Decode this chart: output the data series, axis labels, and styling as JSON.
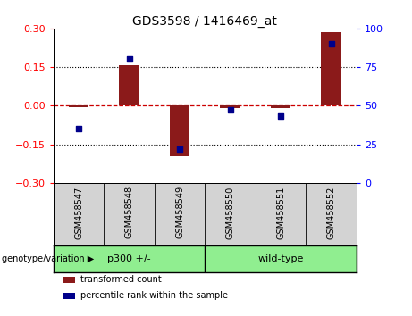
{
  "title": "GDS3598 / 1416469_at",
  "samples": [
    "GSM458547",
    "GSM458548",
    "GSM458549",
    "GSM458550",
    "GSM458551",
    "GSM458552"
  ],
  "transformed_counts": [
    -0.005,
    0.158,
    -0.195,
    -0.008,
    -0.01,
    0.285
  ],
  "percentile_ranks": [
    35,
    80,
    22,
    47,
    43,
    90
  ],
  "ylim_left": [
    -0.3,
    0.3
  ],
  "ylim_right": [
    0,
    100
  ],
  "yticks_left": [
    -0.3,
    -0.15,
    0,
    0.15,
    0.3
  ],
  "yticks_right": [
    0,
    25,
    50,
    75,
    100
  ],
  "bar_color": "#8b1a1a",
  "scatter_color": "#00008b",
  "hline_color": "#cc0000",
  "sample_bg": "#d3d3d3",
  "green_light": "#90ee90",
  "group_divider": 2.5,
  "group1_label": "p300 +/-",
  "group2_label": "wild-type",
  "legend_red_label": "transformed count",
  "legend_blue_label": "percentile rank within the sample",
  "genotype_label": "genotype/variation ▶"
}
